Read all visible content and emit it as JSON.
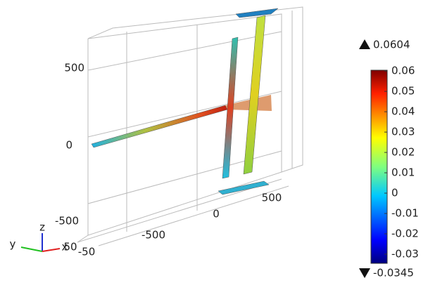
{
  "axes": {
    "z_ticks": [
      "500",
      "0",
      "-500"
    ],
    "x_ticks": [
      "-500",
      "0",
      "500"
    ],
    "y_ticks": [
      "50",
      "-50"
    ],
    "triad": [
      "z",
      "y",
      "x"
    ]
  },
  "colorbar": {
    "max": 0.0604,
    "min": -0.0345,
    "ticks": [
      0.06,
      0.05,
      0.04,
      0.03,
      0.02,
      0.01,
      0,
      -0.01,
      -0.02,
      -0.03
    ]
  }
}
